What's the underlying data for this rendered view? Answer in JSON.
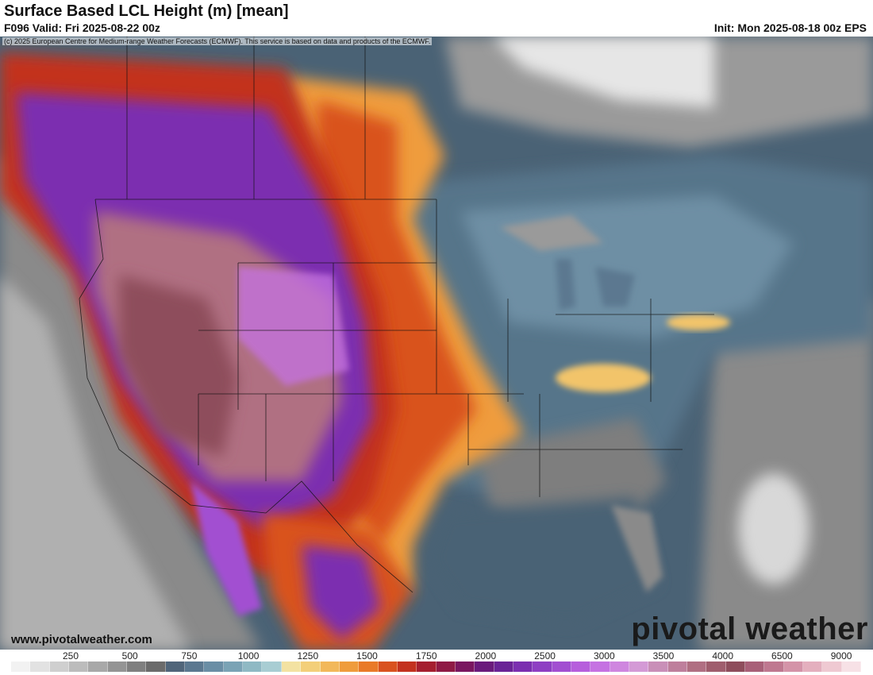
{
  "header": {
    "title": "Surface Based LCL Height (m) [mean]",
    "valid": "F096 Valid: Fri 2025-08-22 00z",
    "init": "Init: Mon 2025-08-18 00z EPS"
  },
  "map": {
    "copyright": "(c) 2025 European Centre for Medium-range Weather Forecasts (ECMWF). This service is based on data and products of the ECMWF.",
    "site": "www.pivotalweather.com",
    "brand": "pivotal weather"
  },
  "legend": {
    "ticks": [
      "250",
      "500",
      "750",
      "1000",
      "1250",
      "1500",
      "1750",
      "2000",
      "2500",
      "3000",
      "3500",
      "4000",
      "6500",
      "9000"
    ],
    "colors": [
      "#f2f2f2",
      "#e2e2e2",
      "#cfcfcf",
      "#bcbcbc",
      "#a8a8a8",
      "#949494",
      "#7f7f7f",
      "#6b6b6b",
      "#50657a",
      "#5b7890",
      "#6a8ea5",
      "#7aa3b5",
      "#8fb9c4",
      "#a8cdd3",
      "#f3e2a2",
      "#f3cf7a",
      "#f2b85a",
      "#ef9c3c",
      "#e97a28",
      "#d9521f",
      "#c3321f",
      "#a51f2f",
      "#8f1a45",
      "#7a1760",
      "#6a1b7c",
      "#6a2396",
      "#7b2fb0",
      "#8e3fc3",
      "#a24fd1",
      "#b65fdc",
      "#c572e2",
      "#cf86df",
      "#d49ad6",
      "#c98fb8",
      "#be7f9c",
      "#b06f82",
      "#9f5d6d",
      "#8e4d5c",
      "#a86078",
      "#bf7890",
      "#d493a8",
      "#e4afbe",
      "#efc9d2",
      "#f7e1e6"
    ]
  }
}
